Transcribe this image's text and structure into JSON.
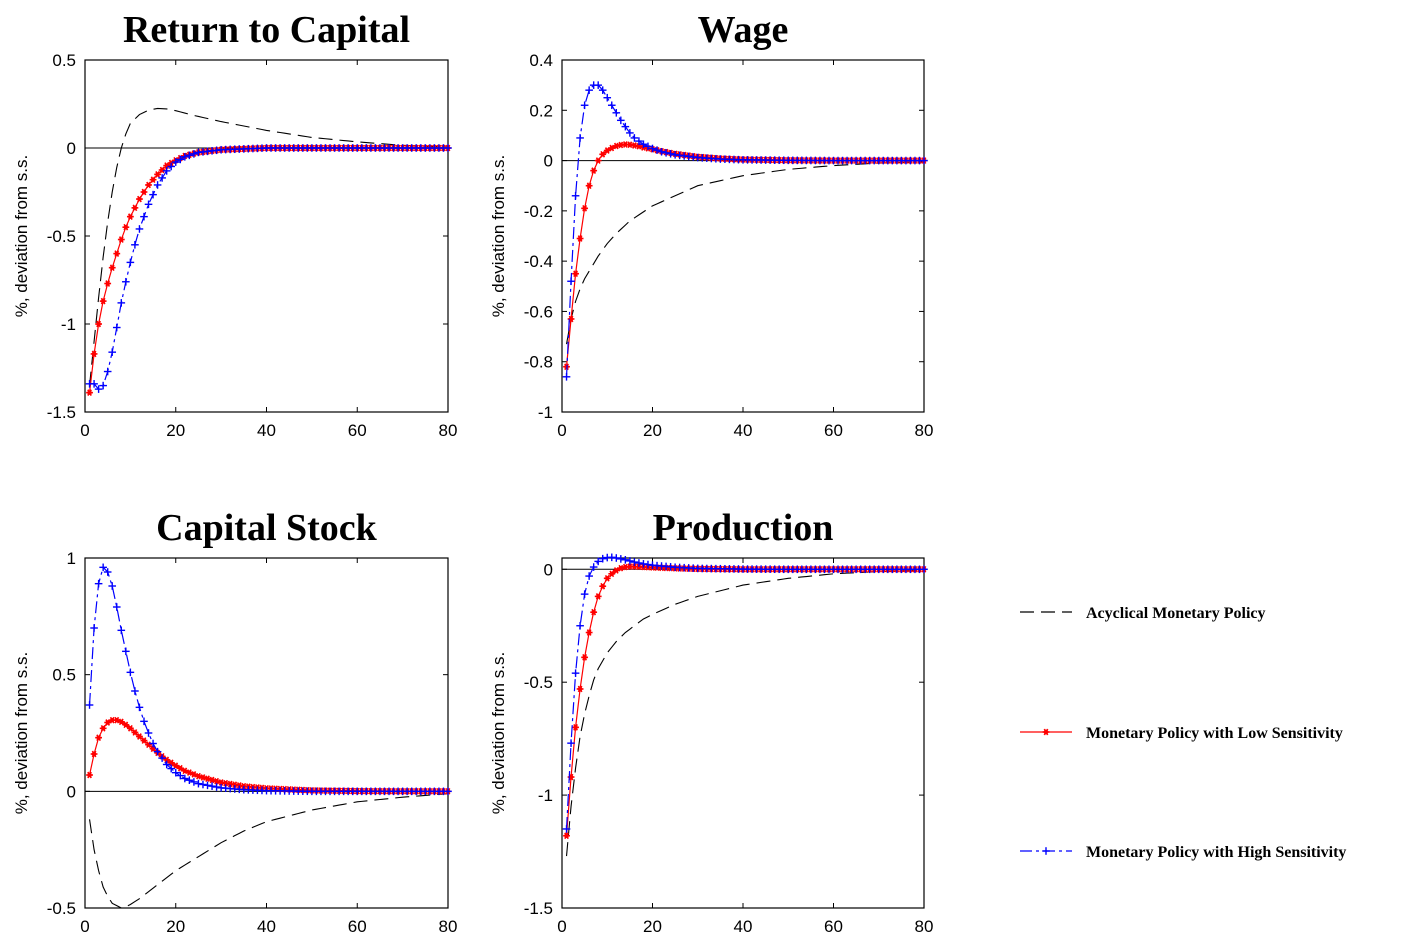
{
  "chart_data": [
    {
      "type": "line",
      "title": "Return to Capital",
      "ylabel": "%, deviation from s.s.",
      "xlim": [
        0,
        80
      ],
      "ylim": [
        -1.5,
        0.5
      ],
      "xticks": [
        0,
        20,
        40,
        60,
        80
      ],
      "yticks": [
        -1.5,
        -1,
        -0.5,
        0,
        0.5
      ],
      "ytick_labels": [
        "-1.5",
        "-1",
        "-0.5",
        "0",
        "0.5"
      ],
      "series": [
        {
          "name": "Acyclical Monetary Policy",
          "x": [
            1,
            2,
            3,
            4,
            5,
            6,
            7,
            8,
            9,
            10,
            12,
            14,
            16,
            18,
            20,
            24,
            30,
            40,
            50,
            60,
            70,
            80
          ],
          "values": [
            -1.35,
            -1.1,
            -0.85,
            -0.62,
            -0.42,
            -0.25,
            -0.11,
            0.0,
            0.08,
            0.14,
            0.19,
            0.215,
            0.225,
            0.222,
            0.212,
            0.185,
            0.15,
            0.1,
            0.06,
            0.035,
            0.015,
            0.005
          ]
        },
        {
          "name": "Monetary Policy with Low Sensitivity",
          "x": [
            1,
            2,
            3,
            4,
            5,
            6,
            7,
            8,
            9,
            10,
            12,
            14,
            16,
            18,
            20,
            22,
            25,
            30,
            40,
            50,
            60,
            70,
            80
          ],
          "values": [
            -1.39,
            -1.17,
            -1.0,
            -0.87,
            -0.77,
            -0.68,
            -0.6,
            -0.52,
            -0.45,
            -0.39,
            -0.29,
            -0.21,
            -0.15,
            -0.1,
            -0.07,
            -0.045,
            -0.025,
            -0.01,
            0.0,
            0.0,
            0.0,
            0.0,
            0.0
          ]
        },
        {
          "name": "Monetary Policy with High Sensitivity",
          "x": [
            1,
            2,
            3,
            4,
            5,
            6,
            7,
            8,
            9,
            10,
            11,
            12,
            14,
            16,
            18,
            20,
            22,
            25,
            30,
            40,
            50,
            60,
            70,
            80
          ],
          "values": [
            -1.34,
            -1.34,
            -1.37,
            -1.35,
            -1.27,
            -1.16,
            -1.02,
            -0.88,
            -0.76,
            -0.65,
            -0.55,
            -0.46,
            -0.32,
            -0.21,
            -0.13,
            -0.08,
            -0.05,
            -0.025,
            -0.01,
            0.0,
            0.0,
            0.0,
            0.0,
            0.0
          ]
        }
      ]
    },
    {
      "type": "line",
      "title": "Wage",
      "ylabel": "%, deviation from s.s.",
      "xlim": [
        0,
        80
      ],
      "ylim": [
        -1,
        0.4
      ],
      "xticks": [
        0,
        20,
        40,
        60,
        80
      ],
      "yticks": [
        -1,
        -0.8,
        -0.6,
        -0.4,
        -0.2,
        0,
        0.2,
        0.4
      ],
      "ytick_labels": [
        "-1",
        "-0.8",
        "-0.6",
        "-0.4",
        "-0.2",
        "0",
        "0.2",
        "0.4"
      ],
      "series": [
        {
          "name": "Acyclical Monetary Policy",
          "x": [
            1,
            2,
            3,
            4,
            5,
            6,
            8,
            10,
            12,
            15,
            20,
            25,
            30,
            40,
            50,
            60,
            70,
            80
          ],
          "values": [
            -0.73,
            -0.63,
            -0.56,
            -0.51,
            -0.47,
            -0.44,
            -0.38,
            -0.33,
            -0.29,
            -0.24,
            -0.18,
            -0.14,
            -0.1,
            -0.06,
            -0.035,
            -0.02,
            -0.01,
            -0.005
          ]
        },
        {
          "name": "Monetary Policy with Low Sensitivity",
          "x": [
            1,
            2,
            3,
            4,
            5,
            6,
            7,
            8,
            9,
            10,
            11,
            12,
            13,
            14,
            15,
            16,
            17,
            18,
            20,
            22,
            25,
            30,
            35,
            40,
            50,
            60,
            70,
            80
          ],
          "values": [
            -0.82,
            -0.63,
            -0.45,
            -0.31,
            -0.19,
            -0.1,
            -0.04,
            0.0,
            0.025,
            0.04,
            0.05,
            0.058,
            0.062,
            0.064,
            0.063,
            0.06,
            0.057,
            0.052,
            0.045,
            0.037,
            0.027,
            0.015,
            0.008,
            0.004,
            0.001,
            0.0,
            0.0,
            0.0
          ]
        },
        {
          "name": "Monetary Policy with High Sensitivity",
          "x": [
            1,
            2,
            3,
            4,
            5,
            6,
            7,
            8,
            9,
            10,
            11,
            12,
            13,
            14,
            15,
            16,
            18,
            20,
            22,
            25,
            30,
            35,
            40,
            50,
            60,
            70,
            80
          ],
          "values": [
            -0.86,
            -0.48,
            -0.14,
            0.09,
            0.22,
            0.28,
            0.3,
            0.3,
            0.28,
            0.25,
            0.22,
            0.19,
            0.16,
            0.135,
            0.11,
            0.09,
            0.065,
            0.048,
            0.035,
            0.023,
            0.012,
            0.006,
            0.003,
            0.001,
            0.0,
            0.0,
            0.0
          ]
        }
      ]
    },
    {
      "type": "line",
      "title": "Capital Stock",
      "ylabel": "%, deviation from s.s.",
      "xlim": [
        0,
        80
      ],
      "ylim": [
        -0.5,
        1
      ],
      "xticks": [
        0,
        20,
        40,
        60,
        80
      ],
      "yticks": [
        -0.5,
        0,
        0.5,
        1
      ],
      "ytick_labels": [
        "-0.5",
        "0",
        "0.5",
        "1"
      ],
      "series": [
        {
          "name": "Acyclical Monetary Policy",
          "x": [
            1,
            2,
            3,
            4,
            5,
            6,
            7,
            8,
            9,
            10,
            12,
            14,
            16,
            18,
            20,
            25,
            30,
            35,
            40,
            50,
            60,
            70,
            80
          ],
          "values": [
            -0.12,
            -0.25,
            -0.34,
            -0.41,
            -0.45,
            -0.48,
            -0.49,
            -0.5,
            -0.495,
            -0.485,
            -0.46,
            -0.43,
            -0.4,
            -0.37,
            -0.34,
            -0.28,
            -0.22,
            -0.17,
            -0.13,
            -0.08,
            -0.045,
            -0.025,
            -0.01
          ]
        },
        {
          "name": "Monetary Policy with Low Sensitivity",
          "x": [
            1,
            2,
            3,
            4,
            5,
            6,
            7,
            8,
            9,
            10,
            12,
            14,
            16,
            18,
            20,
            22,
            25,
            30,
            35,
            40,
            50,
            60,
            70,
            80
          ],
          "values": [
            0.07,
            0.16,
            0.23,
            0.27,
            0.295,
            0.305,
            0.305,
            0.298,
            0.285,
            0.27,
            0.235,
            0.2,
            0.165,
            0.135,
            0.11,
            0.088,
            0.065,
            0.038,
            0.022,
            0.013,
            0.004,
            0.001,
            0.0,
            0.0
          ]
        },
        {
          "name": "Monetary Policy with High Sensitivity",
          "x": [
            1,
            2,
            3,
            4,
            5,
            6,
            7,
            8,
            9,
            10,
            11,
            12,
            13,
            14,
            15,
            16,
            18,
            20,
            22,
            25,
            30,
            35,
            40,
            50,
            60,
            70,
            80
          ],
          "values": [
            0.37,
            0.7,
            0.89,
            0.96,
            0.94,
            0.88,
            0.79,
            0.69,
            0.6,
            0.51,
            0.43,
            0.36,
            0.3,
            0.25,
            0.205,
            0.17,
            0.115,
            0.08,
            0.055,
            0.033,
            0.015,
            0.007,
            0.003,
            0.0,
            0.0,
            0.0,
            0.0
          ]
        }
      ]
    },
    {
      "type": "line",
      "title": "Production",
      "ylabel": "%, deviation from s.s.",
      "xlim": [
        0,
        80
      ],
      "ylim": [
        -1.5,
        0.05
      ],
      "xticks": [
        0,
        20,
        40,
        60,
        80
      ],
      "yticks": [
        -1.5,
        -1,
        -0.5,
        0
      ],
      "ytick_labels": [
        "-1.5",
        "-1",
        "-0.5",
        "0"
      ],
      "series": [
        {
          "name": "Acyclical Monetary Policy",
          "x": [
            1,
            2,
            3,
            4,
            5,
            6,
            7,
            8,
            10,
            12,
            14,
            16,
            18,
            20,
            25,
            30,
            40,
            50,
            60,
            70,
            80
          ],
          "values": [
            -1.27,
            -1.05,
            -0.88,
            -0.74,
            -0.64,
            -0.56,
            -0.49,
            -0.44,
            -0.37,
            -0.32,
            -0.28,
            -0.25,
            -0.22,
            -0.2,
            -0.155,
            -0.12,
            -0.07,
            -0.04,
            -0.02,
            -0.01,
            -0.005
          ]
        },
        {
          "name": "Monetary Policy with Low Sensitivity",
          "x": [
            1,
            2,
            3,
            4,
            5,
            6,
            7,
            8,
            9,
            10,
            11,
            12,
            13,
            14,
            15,
            16,
            18,
            20,
            25,
            30,
            40,
            50,
            60,
            70,
            80
          ],
          "values": [
            -1.18,
            -0.92,
            -0.7,
            -0.53,
            -0.39,
            -0.28,
            -0.19,
            -0.12,
            -0.075,
            -0.04,
            -0.02,
            -0.005,
            0.005,
            0.01,
            0.012,
            0.012,
            0.01,
            0.008,
            0.004,
            0.002,
            0.0,
            0.0,
            0.0,
            0.0,
            0.0
          ]
        },
        {
          "name": "Monetary Policy with High Sensitivity",
          "x": [
            1,
            2,
            3,
            4,
            5,
            6,
            7,
            8,
            9,
            10,
            11,
            12,
            13,
            14,
            15,
            16,
            18,
            20,
            25,
            30,
            40,
            50,
            60,
            70,
            80
          ],
          "values": [
            -1.15,
            -0.77,
            -0.46,
            -0.25,
            -0.11,
            -0.03,
            0.01,
            0.035,
            0.047,
            0.052,
            0.053,
            0.05,
            0.046,
            0.042,
            0.037,
            0.032,
            0.024,
            0.018,
            0.009,
            0.004,
            0.001,
            0.0,
            0.0,
            0.0,
            0.0
          ]
        }
      ]
    }
  ],
  "legend": {
    "placement": "right",
    "entries": [
      {
        "label": "Acyclical Monetary Policy",
        "style": "dashed",
        "color": "#000000",
        "marker": "none"
      },
      {
        "label": "Monetary Policy with Low Sensitivity",
        "style": "solid",
        "color": "#ff0000",
        "marker": "asterisk"
      },
      {
        "label": "Monetary Policy with High Sensitivity",
        "style": "dashdot",
        "color": "#0000ff",
        "marker": "plus"
      }
    ]
  },
  "colors": {
    "acyclical": "#000000",
    "low": "#ff0000",
    "high": "#0000ff"
  }
}
